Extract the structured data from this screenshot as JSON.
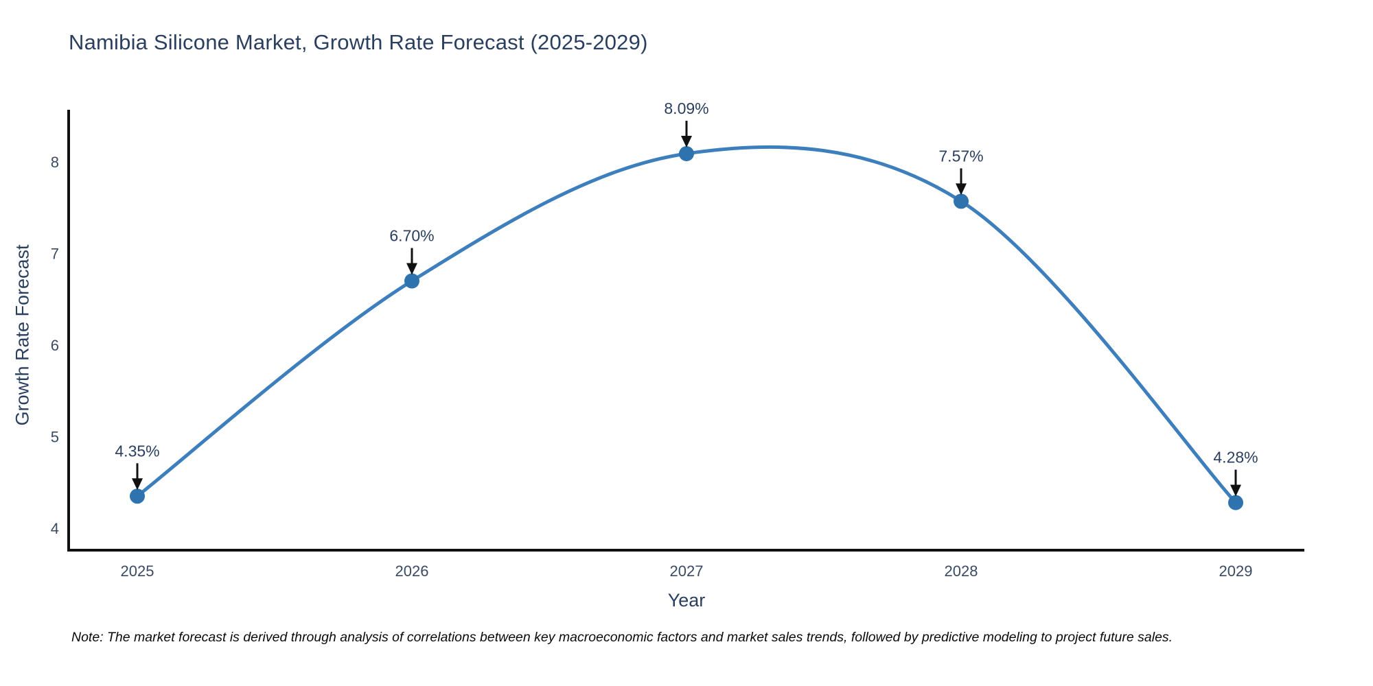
{
  "title": "Namibia Silicone Market, Growth Rate Forecast (2025-2029)",
  "note": "Note: The market forecast is derived through analysis of correlations between key macroeconomic factors and market sales trends, followed by predictive modeling to project future sales.",
  "chart_data": {
    "type": "line",
    "title": "Namibia Silicone Market, Growth Rate Forecast (2025-2029)",
    "xlabel": "Year",
    "ylabel": "Growth Rate Forecast",
    "categories": [
      "2025",
      "2026",
      "2027",
      "2028",
      "2029"
    ],
    "values": [
      4.35,
      6.7,
      8.09,
      7.57,
      4.28
    ],
    "point_labels": [
      "4.35%",
      "6.70%",
      "8.09%",
      "7.57%",
      "4.28%"
    ],
    "yticks": [
      4,
      5,
      6,
      7,
      8
    ],
    "ylim": [
      3.76,
      8.55
    ],
    "line_shape": "spline",
    "grid": false,
    "legend_position": "none",
    "colors": {
      "line": "#3d7ebd",
      "marker": "#2e72ae",
      "axis": "#111111",
      "annotation_arrow": "#111111",
      "title_text": "#2a3f5f",
      "tick_text": "#3b4a63"
    }
  }
}
